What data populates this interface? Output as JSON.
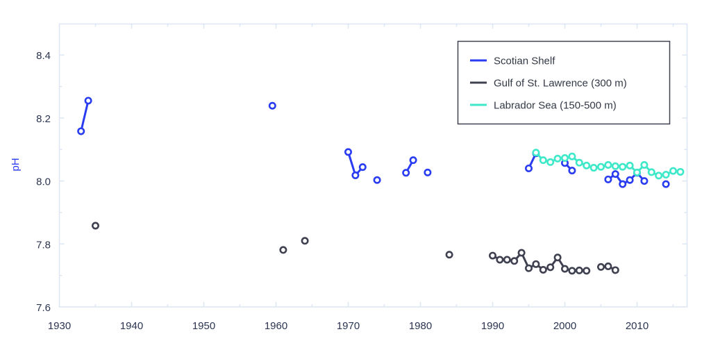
{
  "chart_data": {
    "type": "line",
    "title": "",
    "xlabel": "",
    "ylabel": "pH",
    "xlim": [
      1930,
      2017
    ],
    "ylim": [
      7.6,
      8.5
    ],
    "x_ticks": [
      1930,
      1940,
      1950,
      1960,
      1970,
      1980,
      1990,
      2000,
      2010
    ],
    "x_tick_labels": [
      "1930",
      "1940",
      "1950",
      "1960",
      "1970",
      "1980",
      "1990",
      "2000",
      "2010"
    ],
    "y_ticks": [
      7.6,
      7.8,
      8.0,
      8.2,
      8.4
    ],
    "y_tick_labels": [
      "7.6",
      "7.8",
      "8.0",
      "8.2",
      "8.4"
    ],
    "grid": false,
    "legend_position": "upper right",
    "series": [
      {
        "name": "Scotian Shelf",
        "color": "#2a3cf2",
        "segments": [
          [
            [
              1933,
              8.158
            ],
            [
              1934,
              8.255
            ]
          ],
          [
            [
              1959.5,
              8.239
            ]
          ],
          [
            [
              1970,
              8.092
            ],
            [
              1971,
              8.018
            ],
            [
              1972,
              8.044
            ]
          ],
          [
            [
              1974,
              8.003
            ]
          ],
          [
            [
              1978,
              8.026
            ],
            [
              1979,
              8.066
            ]
          ],
          [
            [
              1981,
              8.027
            ]
          ],
          [
            [
              1995,
              8.04
            ],
            [
              1996,
              8.088
            ]
          ],
          [
            [
              2000,
              8.057
            ],
            [
              2001,
              8.033
            ]
          ],
          [
            [
              2006,
              8.005
            ],
            [
              2007,
              8.022
            ],
            [
              2008,
              7.99
            ],
            [
              2009,
              8.003
            ],
            [
              2010,
              8.026
            ],
            [
              2011,
              8.0
            ]
          ],
          [
            [
              2014,
              7.99
            ]
          ]
        ]
      },
      {
        "name": "Gulf of St. Lawrence (300 m)",
        "color": "#3f4150",
        "segments": [
          [
            [
              1935,
              7.858
            ]
          ],
          [
            [
              1961,
              7.781
            ]
          ],
          [
            [
              1964,
              7.81
            ]
          ],
          [
            [
              1984,
              7.766
            ]
          ],
          [
            [
              1990,
              7.763
            ],
            [
              1991,
              7.75
            ],
            [
              1992,
              7.75
            ],
            [
              1993,
              7.746
            ],
            [
              1994,
              7.772
            ],
            [
              1995,
              7.723
            ],
            [
              1996,
              7.736
            ],
            [
              1997,
              7.718
            ],
            [
              1998,
              7.726
            ],
            [
              1999,
              7.757
            ],
            [
              2000,
              7.721
            ],
            [
              2001,
              7.715
            ],
            [
              2002,
              7.716
            ],
            [
              2003,
              7.715
            ]
          ],
          [
            [
              2005,
              7.727
            ],
            [
              2006,
              7.729
            ],
            [
              2007,
              7.717
            ]
          ]
        ]
      },
      {
        "name": "Labrador Sea (150-500 m)",
        "color": "#3ee8c8",
        "segments": [
          [
            [
              1996,
              8.09
            ],
            [
              1997,
              8.066
            ],
            [
              1998,
              8.06
            ],
            [
              1999,
              8.071
            ],
            [
              2000,
              8.073
            ],
            [
              2001,
              8.078
            ],
            [
              2002,
              8.058
            ],
            [
              2003,
              8.049
            ],
            [
              2004,
              8.042
            ],
            [
              2005,
              8.045
            ],
            [
              2006,
              8.051
            ],
            [
              2007,
              8.047
            ],
            [
              2008,
              8.045
            ],
            [
              2009,
              8.049
            ],
            [
              2010,
              8.027
            ],
            [
              2011,
              8.051
            ],
            [
              2012,
              8.028
            ],
            [
              2013,
              8.017
            ],
            [
              2014,
              8.02
            ],
            [
              2015,
              8.032
            ],
            [
              2016,
              8.029
            ]
          ]
        ]
      }
    ]
  },
  "legend": {
    "items": [
      {
        "label": "Scotian Shelf",
        "color": "#2a3cf2"
      },
      {
        "label": "Gulf of St. Lawrence (300 m)",
        "color": "#3f4150"
      },
      {
        "label": "Labrador Sea (150-500 m)",
        "color": "#3ee8c8"
      }
    ]
  },
  "axes": {
    "y_title": "pH",
    "frame_color": "#dce6f4",
    "tick_color": "#2b3450"
  }
}
